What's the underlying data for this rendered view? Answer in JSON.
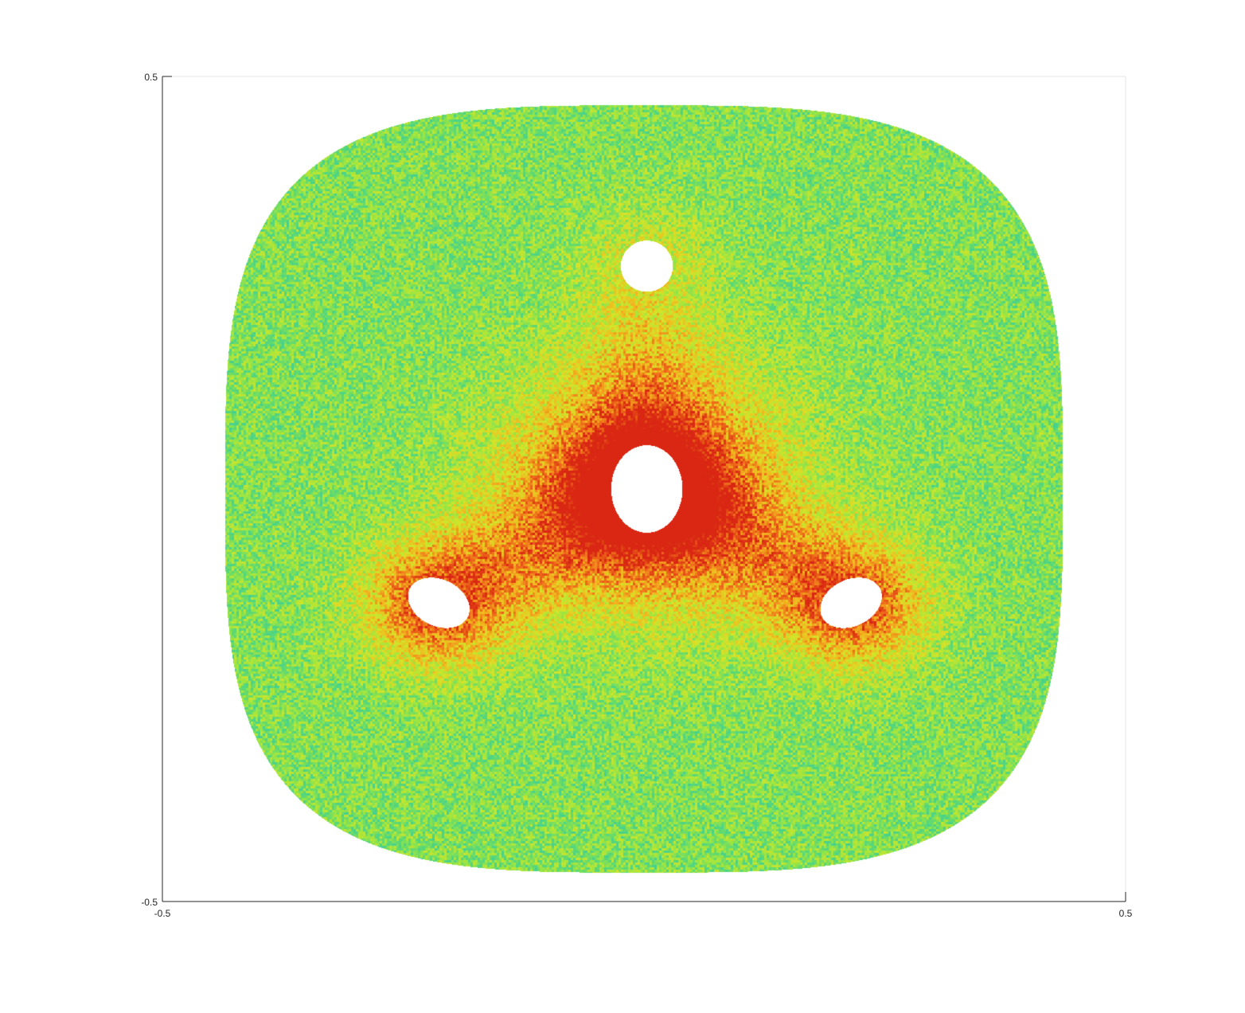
{
  "chart_data": {
    "type": "heatmap",
    "title": "",
    "xlabel": "",
    "ylabel": "",
    "xlim": [
      -0.5,
      0.5
    ],
    "ylim": [
      -0.5,
      0.5
    ],
    "x_ticks": [
      "-0.5",
      "0.5"
    ],
    "y_ticks": [
      "-0.5",
      "0.5"
    ],
    "grid": false,
    "legend": "none",
    "colormap": [
      "#1fb4c8",
      "#2bc7b0",
      "#5ad876",
      "#9be542",
      "#d5e428",
      "#f2b81f",
      "#ee6b1a",
      "#d92713"
    ],
    "domain": {
      "shape": "rounded-square",
      "center": [
        0.0,
        0.0
      ],
      "half_width": 0.435,
      "half_height": 0.465,
      "exponent": 3.4
    },
    "holes": [
      {
        "name": "top",
        "center": [
          0.003,
          0.27
        ],
        "rx": 0.027,
        "ry": 0.031,
        "angle": 0
      },
      {
        "name": "center",
        "center": [
          0.003,
          0.0
        ],
        "rx": 0.037,
        "ry": 0.053,
        "angle": 0
      },
      {
        "name": "left",
        "center": [
          -0.213,
          -0.138
        ],
        "rx": 0.027,
        "ry": 0.035,
        "angle": 50
      },
      {
        "name": "right",
        "center": [
          0.215,
          -0.138
        ],
        "rx": 0.027,
        "ry": 0.035,
        "angle": -50
      }
    ],
    "field": {
      "background_level": 0.38,
      "noise_amplitude": 0.32,
      "hotspots": [
        {
          "center": [
            0.003,
            0.0
          ],
          "strength": 0.55,
          "spread": 0.1
        },
        {
          "center": [
            -0.213,
            -0.138
          ],
          "strength": 0.35,
          "spread": 0.055
        },
        {
          "center": [
            0.215,
            -0.138
          ],
          "strength": 0.35,
          "spread": 0.055
        }
      ],
      "ligaments": [
        {
          "from": [
            0.003,
            0.0
          ],
          "to": [
            0.003,
            0.27
          ],
          "strength": 0.18
        },
        {
          "from": [
            0.003,
            0.0
          ],
          "to": [
            -0.213,
            -0.138
          ],
          "strength": 0.22
        },
        {
          "from": [
            0.003,
            0.0
          ],
          "to": [
            0.215,
            -0.138
          ],
          "strength": 0.22
        }
      ]
    }
  }
}
